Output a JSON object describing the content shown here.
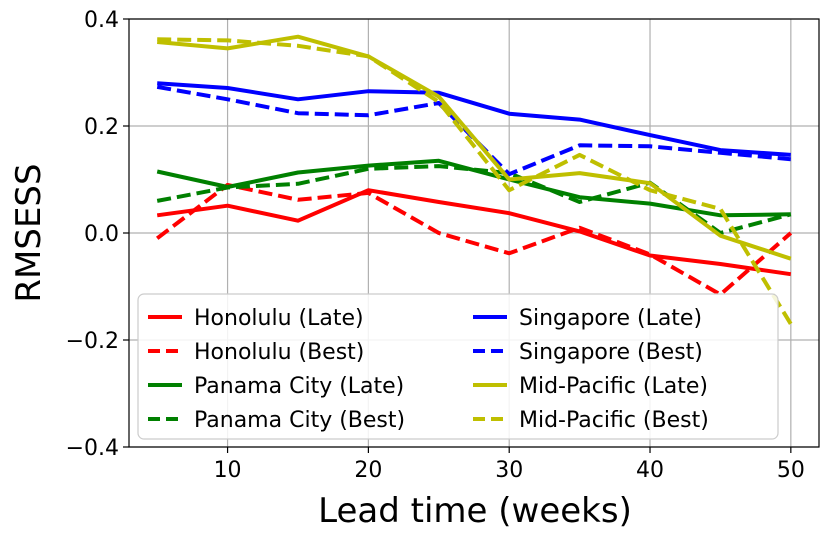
{
  "chart_data": {
    "type": "line",
    "title": "",
    "xlabel": "Lead time (weeks)",
    "ylabel": "RMSESS",
    "xlim": [
      3,
      52
    ],
    "ylim": [
      -0.4,
      0.4
    ],
    "x_ticks": [
      10,
      20,
      30,
      40,
      50
    ],
    "x_tick_labels": [
      "10",
      "20",
      "30",
      "40",
      "50"
    ],
    "y_ticks": [
      -0.4,
      -0.2,
      0.0,
      0.2,
      0.4
    ],
    "y_tick_labels": [
      "−0.4",
      "−0.2",
      "0.0",
      "0.2",
      "0.4"
    ],
    "grid": true,
    "legend_position": "bottom-left",
    "x": [
      5,
      10,
      15,
      20,
      25,
      30,
      35,
      40,
      45,
      50
    ],
    "series": [
      {
        "name": "Honolulu (Late)",
        "color": "#ff0000",
        "style": "solid",
        "values": [
          0.033,
          0.051,
          0.023,
          0.08,
          0.058,
          0.037,
          0.003,
          -0.042,
          -0.058,
          -0.077
        ]
      },
      {
        "name": "Honolulu (Best)",
        "color": "#ff0000",
        "style": "dashed",
        "values": [
          -0.01,
          0.09,
          0.062,
          0.075,
          0.0,
          -0.038,
          0.01,
          -0.04,
          -0.115,
          0.0
        ]
      },
      {
        "name": "Panama City (Late)",
        "color": "#008000",
        "style": "solid",
        "values": [
          0.115,
          0.086,
          0.113,
          0.126,
          0.135,
          0.1,
          0.067,
          0.055,
          0.033,
          0.035
        ]
      },
      {
        "name": "Panama City (Best)",
        "color": "#008000",
        "style": "dashed",
        "values": [
          0.06,
          0.085,
          0.092,
          0.12,
          0.125,
          0.112,
          0.058,
          0.094,
          0.0,
          0.035
        ]
      },
      {
        "name": "Singapore (Late)",
        "color": "#0000ff",
        "style": "solid",
        "values": [
          0.28,
          0.271,
          0.25,
          0.265,
          0.262,
          0.223,
          0.212,
          0.183,
          0.155,
          0.146
        ]
      },
      {
        "name": "Singapore (Best)",
        "color": "#0000ff",
        "style": "dashed",
        "values": [
          0.273,
          0.25,
          0.224,
          0.22,
          0.243,
          0.11,
          0.164,
          0.162,
          0.15,
          0.138
        ]
      },
      {
        "name": "Mid-Pacific (Late)",
        "color": "#bfbf00",
        "style": "solid",
        "values": [
          0.357,
          0.345,
          0.367,
          0.33,
          0.255,
          0.1,
          0.112,
          0.093,
          -0.005,
          -0.048
        ]
      },
      {
        "name": "Mid-Pacific (Best)",
        "color": "#bfbf00",
        "style": "dashed",
        "values": [
          0.362,
          0.36,
          0.35,
          0.33,
          0.245,
          0.08,
          0.146,
          0.08,
          0.045,
          -0.17
        ]
      }
    ]
  }
}
